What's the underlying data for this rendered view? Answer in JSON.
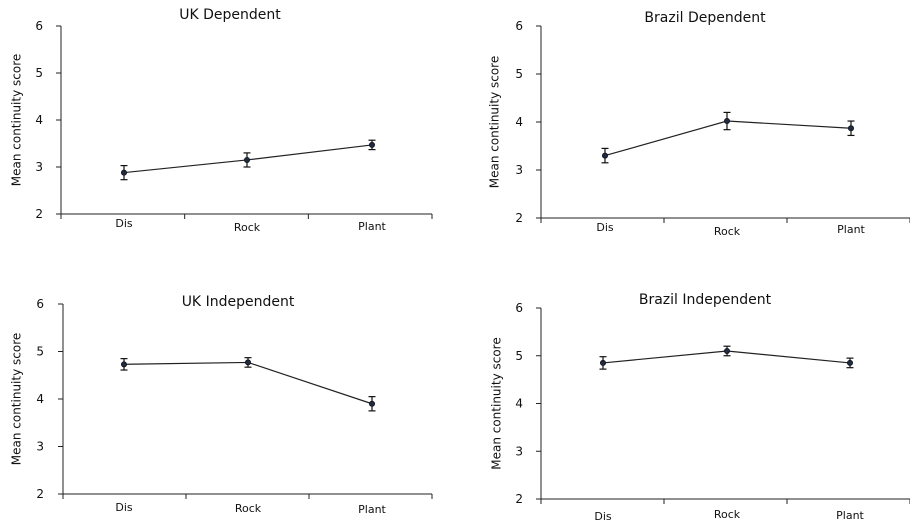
{
  "chart_data": [
    {
      "type": "line",
      "title": "UK Dependent",
      "ylabel": "Mean continuity score",
      "categories": [
        "Dis",
        "Rock",
        "Plant"
      ],
      "values": [
        2.88,
        3.15,
        3.47
      ],
      "errors": [
        0.15,
        0.15,
        0.1
      ],
      "ylim": [
        2,
        6
      ],
      "yticks": [
        "2",
        "3",
        "4",
        "5",
        "6"
      ]
    },
    {
      "type": "line",
      "title": "Brazil Dependent",
      "ylabel": "Mean continuity score",
      "categories": [
        "Dis",
        "Rock",
        "Plant"
      ],
      "values": [
        3.3,
        4.02,
        3.87
      ],
      "errors": [
        0.15,
        0.18,
        0.15
      ],
      "ylim": [
        2,
        6
      ],
      "yticks": [
        "2",
        "3",
        "4",
        "5",
        "6"
      ]
    },
    {
      "type": "line",
      "title": "UK Independent",
      "ylabel": "Mean continuity score",
      "categories": [
        "Dis",
        "Rock",
        "Plant"
      ],
      "values": [
        4.73,
        4.77,
        3.9
      ],
      "errors": [
        0.12,
        0.1,
        0.15
      ],
      "ylim": [
        2,
        6
      ],
      "yticks": [
        "2",
        "3",
        "4",
        "5",
        "6"
      ]
    },
    {
      "type": "line",
      "title": "Brazil Independent",
      "ylabel": "Mean continuity score",
      "categories": [
        "Dis",
        "Rock",
        "Plant"
      ],
      "values": [
        4.85,
        5.1,
        4.85
      ],
      "errors": [
        0.13,
        0.1,
        0.1
      ],
      "ylim": [
        2,
        6
      ],
      "yticks": [
        "2",
        "3",
        "4",
        "5",
        "6"
      ]
    }
  ]
}
